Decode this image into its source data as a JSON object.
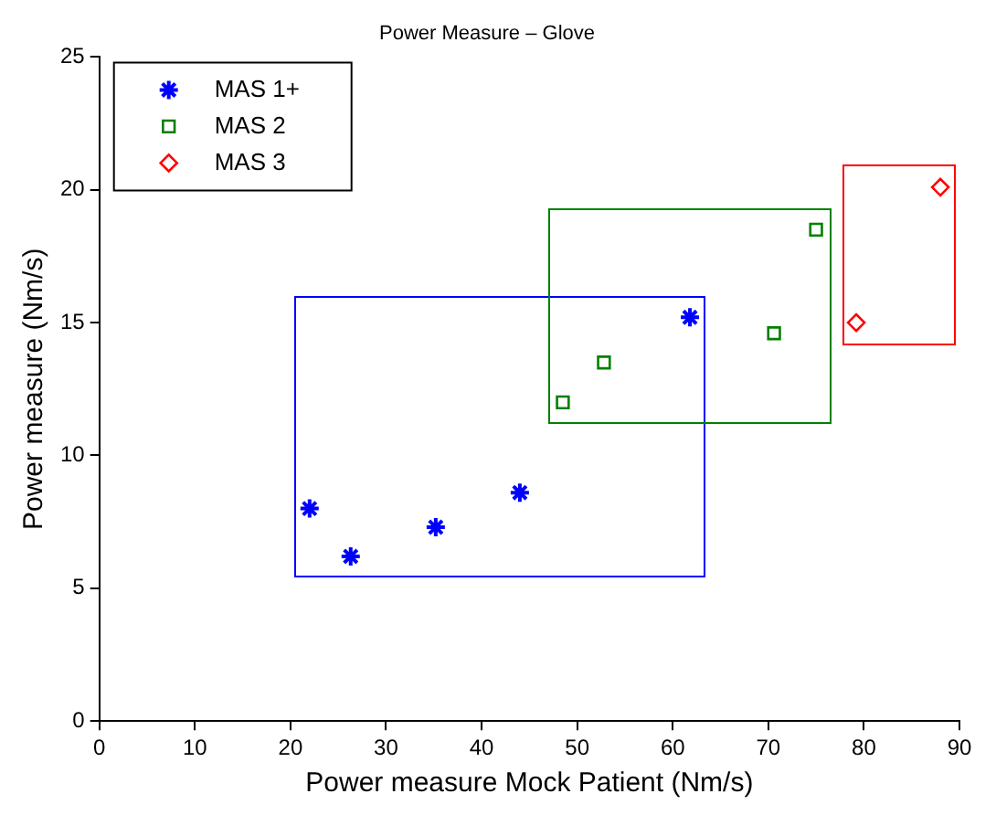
{
  "chart_data": {
    "type": "scatter",
    "title": "Power Measure – Glove",
    "xlabel": "Power measure Mock Patient (Nm/s)",
    "ylabel": "Power measure (Nm/s)",
    "xlim": [
      0,
      90
    ],
    "xticks": [
      0,
      10,
      20,
      30,
      40,
      50,
      60,
      70,
      80,
      90
    ],
    "ylim": [
      0,
      25
    ],
    "yticks": [
      0,
      5,
      10,
      15,
      20,
      25
    ],
    "grid": false,
    "legend": "top left",
    "series": [
      {
        "name": "MAS 1+",
        "color": "#0000ff",
        "marker": "cross",
        "x": [
          22,
          26.3,
          35.2,
          44,
          61.8
        ],
        "values": [
          8,
          6.2,
          7.3,
          8.6,
          15.2
        ]
      },
      {
        "name": "MAS 2",
        "color": "#008000",
        "marker": "square",
        "x": [
          48.5,
          52.8,
          70.6,
          75
        ],
        "values": [
          12,
          13.5,
          14.6,
          18.5
        ]
      },
      {
        "name": "MAS 3",
        "color": "#ff0000",
        "marker": "diamond",
        "x": [
          79.2,
          88
        ],
        "values": [
          15,
          20.1
        ]
      }
    ]
  }
}
